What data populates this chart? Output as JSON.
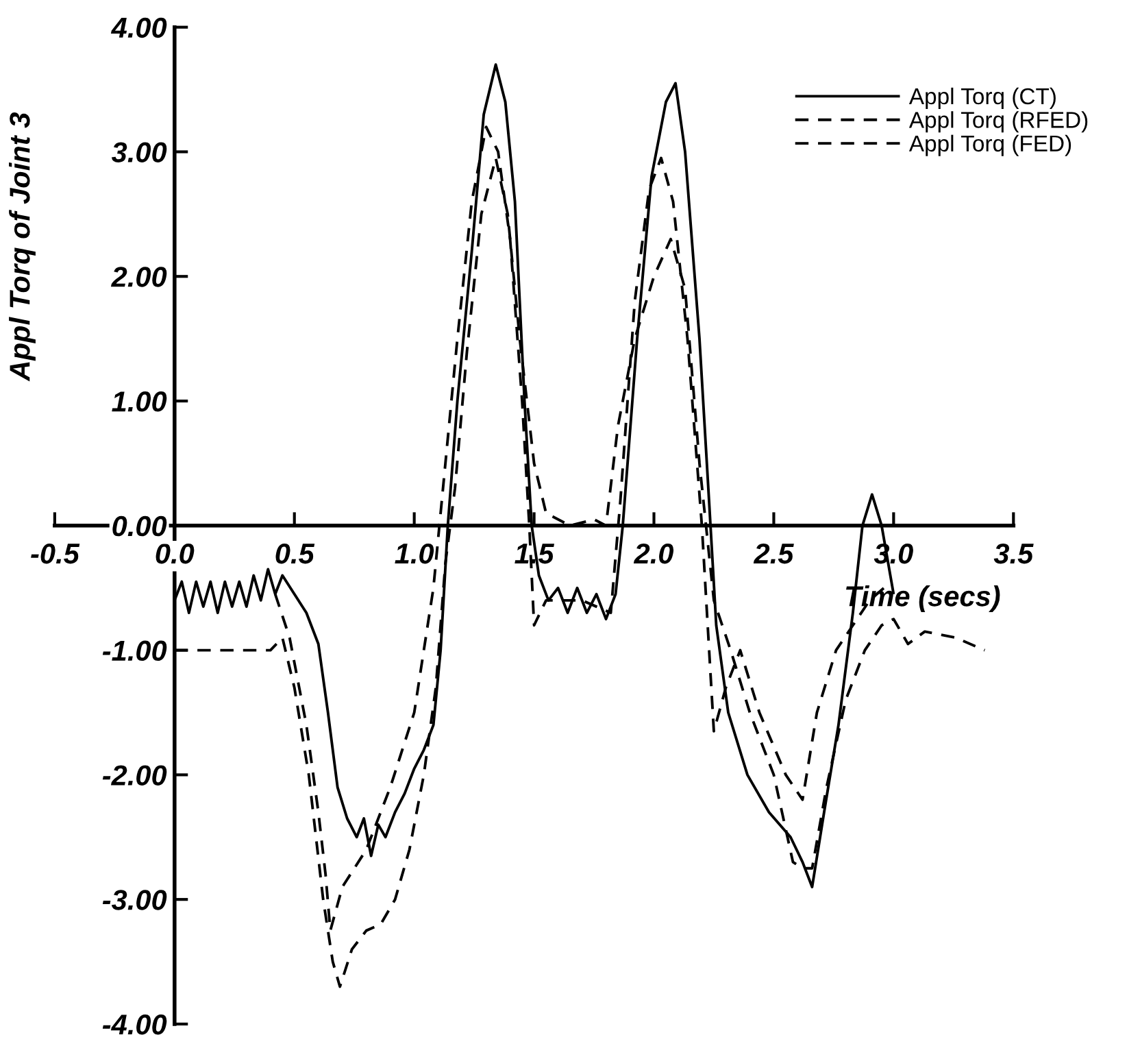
{
  "chart_data": {
    "type": "line",
    "xlabel": "Time (secs)",
    "ylabel": "Appl Torq of Joint 3",
    "xlim": [
      -0.5,
      3.5
    ],
    "ylim": [
      -4,
      4
    ],
    "xticks": [
      {
        "value": -0.5,
        "label": "-0.5"
      },
      {
        "value": 0,
        "label": "0.0"
      },
      {
        "value": 0.5,
        "label": "0.5"
      },
      {
        "value": 1.0,
        "label": "1.0"
      },
      {
        "value": 1.5,
        "label": "1.5"
      },
      {
        "value": 2.0,
        "label": "2.0"
      },
      {
        "value": 2.5,
        "label": "2.5"
      },
      {
        "value": 3.0,
        "label": "3.0"
      },
      {
        "value": 3.5,
        "label": "3.5"
      }
    ],
    "yticks": [
      {
        "value": 4,
        "label": "4.00"
      },
      {
        "value": 3,
        "label": "3.00"
      },
      {
        "value": 2,
        "label": "2.00"
      },
      {
        "value": 1,
        "label": "1.00"
      },
      {
        "value": 0,
        "label": "0.00"
      },
      {
        "value": -1,
        "label": "-1.00"
      },
      {
        "value": -2,
        "label": "-2.00"
      },
      {
        "value": -3,
        "label": "-3.00"
      },
      {
        "value": -4,
        "label": "-4.00"
      }
    ],
    "grid": false,
    "legend": "top right",
    "marker": "none",
    "series": [
      {
        "name": "Appl Torq (CT)",
        "color": "#000000",
        "line_style": "solid",
        "x": [
          0,
          0.03,
          0.06,
          0.09,
          0.12,
          0.15,
          0.18,
          0.21,
          0.24,
          0.27,
          0.3,
          0.33,
          0.36,
          0.39,
          0.42,
          0.45,
          0.5,
          0.55,
          0.6,
          0.64,
          0.68,
          0.72,
          0.76,
          0.79,
          0.82,
          0.85,
          0.88,
          0.92,
          0.96,
          1.0,
          1.04,
          1.08,
          1.11,
          1.14,
          1.18,
          1.24,
          1.29,
          1.34,
          1.38,
          1.42,
          1.46,
          1.49,
          1.52,
          1.56,
          1.6,
          1.64,
          1.68,
          1.72,
          1.76,
          1.8,
          1.84,
          1.87,
          1.93,
          1.99,
          2.05,
          2.09,
          2.13,
          2.19,
          2.23,
          2.26,
          2.31,
          2.39,
          2.48,
          2.57,
          2.62,
          2.66,
          2.71,
          2.77,
          2.83,
          2.87,
          2.91,
          2.95,
          3.0
        ],
        "values": [
          -0.6,
          -0.45,
          -0.7,
          -0.45,
          -0.65,
          -0.45,
          -0.7,
          -0.45,
          -0.65,
          -0.45,
          -0.65,
          -0.4,
          -0.6,
          -0.35,
          -0.55,
          -0.4,
          -0.55,
          -0.7,
          -0.95,
          -1.5,
          -2.1,
          -2.35,
          -2.5,
          -2.35,
          -2.65,
          -2.4,
          -2.5,
          -2.3,
          -2.15,
          -1.95,
          -1.8,
          -1.6,
          -1.0,
          0.0,
          1.0,
          2.2,
          3.3,
          3.7,
          3.4,
          2.6,
          1.0,
          0.0,
          -0.4,
          -0.6,
          -0.5,
          -0.7,
          -0.5,
          -0.7,
          -0.55,
          -0.75,
          -0.55,
          0.0,
          1.5,
          2.8,
          3.4,
          3.55,
          3.0,
          1.5,
          0.2,
          -0.8,
          -1.5,
          -2.0,
          -2.3,
          -2.5,
          -2.7,
          -2.9,
          -2.3,
          -1.6,
          -0.7,
          0.0,
          0.25,
          0.0,
          -0.55
        ]
      },
      {
        "name": "Appl Torq (RFED)",
        "color": "#000000",
        "line_style": "dashed",
        "x": [
          0,
          0.4,
          0.45,
          0.5,
          0.56,
          0.62,
          0.66,
          0.69,
          0.74,
          0.8,
          0.86,
          0.92,
          0.98,
          1.04,
          1.09,
          1.13,
          1.17,
          1.22,
          1.28,
          1.34,
          1.39,
          1.44,
          1.5,
          1.55,
          1.65,
          1.75,
          1.8,
          1.85,
          1.92,
          2.0,
          2.07,
          2.13,
          2.19,
          2.25,
          2.32,
          2.4,
          2.5,
          2.58,
          2.62,
          2.66,
          2.72,
          2.8,
          2.88,
          2.95,
          3.0,
          3.06,
          3.13,
          3.26,
          3.38
        ],
        "values": [
          -1.0,
          -1.0,
          -0.9,
          -1.3,
          -2.0,
          -3.0,
          -3.5,
          -3.7,
          -3.4,
          -3.25,
          -3.2,
          -3.0,
          -2.6,
          -2.0,
          -1.3,
          -0.3,
          0.3,
          1.4,
          2.5,
          2.95,
          2.5,
          1.5,
          0.5,
          0.1,
          0.0,
          0.05,
          0.0,
          0.8,
          1.5,
          2.0,
          2.3,
          1.9,
          0.5,
          -0.6,
          -1.0,
          -1.5,
          -2.0,
          -2.7,
          -2.75,
          -2.75,
          -2.1,
          -1.4,
          -1.0,
          -0.8,
          -0.75,
          -0.95,
          -0.85,
          -0.9,
          -1.0
        ]
      },
      {
        "name": "Appl Torq (FED)",
        "color": "#000000",
        "line_style": "dashed",
        "x": [
          0.42,
          0.48,
          0.55,
          0.6,
          0.63,
          0.65,
          0.7,
          0.8,
          0.9,
          1.0,
          1.08,
          1.12,
          1.18,
          1.24,
          1.3,
          1.35,
          1.4,
          1.45,
          1.48,
          1.5,
          1.55,
          1.7,
          1.82,
          1.86,
          1.92,
          1.98,
          2.03,
          2.08,
          2.14,
          2.2,
          2.25,
          2.3,
          2.36,
          2.44,
          2.55,
          2.62,
          2.68,
          2.76,
          2.83,
          2.9,
          2.96
        ],
        "values": [
          -0.55,
          -0.9,
          -1.6,
          -2.3,
          -2.8,
          -3.25,
          -2.9,
          -2.6,
          -2.1,
          -1.5,
          -0.5,
          0.3,
          1.5,
          2.6,
          3.2,
          3.0,
          2.3,
          1.0,
          0.0,
          -0.8,
          -0.6,
          -0.6,
          -0.7,
          0.2,
          1.8,
          2.7,
          2.95,
          2.6,
          1.5,
          0.0,
          -1.65,
          -1.3,
          -1.0,
          -1.5,
          -2.0,
          -2.2,
          -1.5,
          -1.0,
          -0.8,
          -0.6,
          -0.5
        ]
      }
    ]
  }
}
